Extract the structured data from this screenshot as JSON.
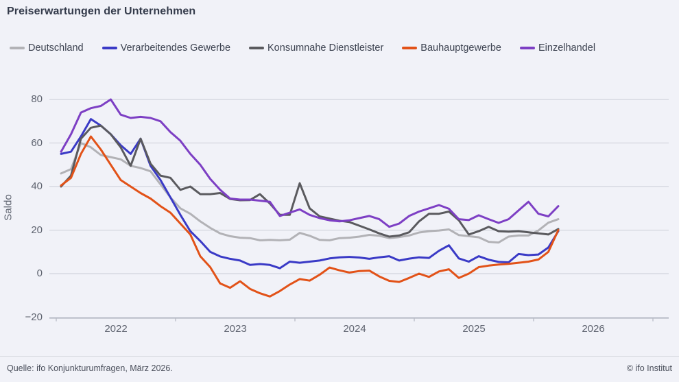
{
  "title": "Preiserwartungen der Unternehmen",
  "footer": {
    "source": "Quelle: ifo Konjunkturumfragen,  März 2026.",
    "copyright": "© ifo Institut"
  },
  "colors": {
    "background": "#f1f2f8",
    "gridline": "#c9ccd6",
    "axis": "#b4b7c1",
    "title_text": "#343b4b",
    "tick_text": "#5f6470"
  },
  "chart_data": {
    "type": "line",
    "title": "Preiserwartungen der Unternehmen",
    "ylabel": "Saldo",
    "xlabel": "",
    "ylim": [
      -20,
      80
    ],
    "yticks": [
      80,
      60,
      40,
      20,
      0,
      -20
    ],
    "ytick_labels": [
      "80",
      "60",
      "40",
      "20",
      "0",
      "−20"
    ],
    "xtick_labels": [
      "2022",
      "2023",
      "2024",
      "2025",
      "2026"
    ],
    "grid": "horizontal",
    "legend_position": "top",
    "x": [
      "Jan 2022",
      "Feb 2022",
      "Mär 2022",
      "Apr 2022",
      "Mai 2022",
      "Jun 2022",
      "Jul 2022",
      "Aug 2022",
      "Sep 2022",
      "Okt 2022",
      "Nov 2022",
      "Dez 2022",
      "Jan 2023",
      "Feb 2023",
      "Mär 2023",
      "Apr 2023",
      "Mai 2023",
      "Jun 2023",
      "Jul 2023",
      "Aug 2023",
      "Sep 2023",
      "Okt 2023",
      "Nov 2023",
      "Dez 2023",
      "Jan 2024",
      "Feb 2024",
      "Mär 2024",
      "Apr 2024",
      "Mai 2024",
      "Jun 2024",
      "Jul 2024",
      "Aug 2024",
      "Sep 2024",
      "Okt 2024",
      "Nov 2024",
      "Dez 2024",
      "Jan 2025",
      "Feb 2025",
      "Mär 2025",
      "Apr 2025",
      "Mai 2025",
      "Jun 2025",
      "Jul 2025",
      "Aug 2025",
      "Sep 2025",
      "Okt 2025",
      "Nov 2025",
      "Dez 2025",
      "Jan 2026",
      "Feb 2026",
      "Mär 2026"
    ],
    "series": [
      {
        "name": "Deutschland",
        "color": "#b2b2b6",
        "values": [
          46,
          48,
          60,
          58,
          54.5,
          53.5,
          52.5,
          49.5,
          48.5,
          47,
          41,
          35,
          30,
          27.5,
          24,
          21,
          18.5,
          17.2,
          16.5,
          16.3,
          15.3,
          15.5,
          15.3,
          15.6,
          18.7,
          17.4,
          15.5,
          15.3,
          16.3,
          16.5,
          17,
          17.8,
          17.4,
          16.3,
          16.8,
          17.5,
          18.9,
          19.5,
          19.8,
          20.3,
          17.7,
          17.2,
          16.7,
          14.6,
          14.3,
          17,
          17.5,
          17.5,
          19.8,
          23.4,
          25
        ]
      },
      {
        "name": "Verarbeitendes Gewerbe",
        "color": "#3a3ac6",
        "values": [
          55,
          56,
          63,
          71,
          68,
          64,
          59,
          55,
          62,
          49.5,
          43,
          35,
          27,
          19.5,
          15,
          10,
          7.9,
          6.8,
          6,
          4,
          4.4,
          4,
          2.5,
          5.5,
          5,
          5.5,
          6,
          7,
          7.5,
          7.7,
          7.4,
          6.8,
          7.5,
          8,
          6,
          6.9,
          7.5,
          7.2,
          10.5,
          13,
          7,
          5.5,
          8,
          6.4,
          5.4,
          5.2,
          9,
          8.5,
          8.8,
          12,
          19.5
        ]
      },
      {
        "name": "Konsumnahe Dienstleister",
        "color": "#5a5a5e",
        "values": [
          40,
          45,
          62,
          67,
          68,
          64,
          58,
          49.5,
          62,
          50.5,
          45,
          44,
          38.5,
          40,
          36.5,
          36.5,
          37,
          34.3,
          33.7,
          33.8,
          36.5,
          32.2,
          27,
          27,
          41.5,
          30,
          26.3,
          25.3,
          24.3,
          23.7,
          22,
          20.3,
          18.5,
          17,
          17.5,
          19,
          24,
          27.5,
          27.5,
          28.5,
          24.5,
          18,
          19.5,
          21.5,
          19.5,
          19.3,
          19.5,
          19,
          18.5,
          18,
          20.5
        ]
      },
      {
        "name": "Bauhauptgewerbe",
        "color": "#e25218",
        "values": [
          40.5,
          44,
          55,
          63,
          57,
          50,
          43,
          40,
          37,
          34.5,
          31,
          28,
          23,
          18,
          8,
          3,
          -4.5,
          -6.5,
          -3.5,
          -7,
          -9,
          -10.5,
          -8,
          -5,
          -2.5,
          -3.2,
          -0.5,
          2.8,
          1.5,
          0.5,
          1.2,
          1.4,
          -1.3,
          -3.3,
          -3.8,
          -2,
          0,
          -1.5,
          1,
          2,
          -2,
          0,
          3,
          3.7,
          4.2,
          4.5,
          5,
          5.5,
          6.5,
          10,
          20
        ]
      },
      {
        "name": "Einzelhandel",
        "color": "#7d3fc4",
        "values": [
          56,
          64,
          74,
          76,
          77,
          80,
          73,
          71.5,
          72,
          71.5,
          70,
          65,
          61,
          55,
          50,
          43.5,
          38.5,
          34.5,
          34,
          34,
          33.5,
          33,
          26.5,
          28,
          29.5,
          27,
          25.5,
          24.5,
          24,
          24.5,
          25.5,
          26.5,
          25,
          21.5,
          23,
          26.5,
          28.5,
          30,
          31.5,
          29.8,
          25,
          24.6,
          26.8,
          25,
          23.3,
          25,
          29,
          33,
          27.5,
          26.3,
          31
        ]
      }
    ]
  }
}
